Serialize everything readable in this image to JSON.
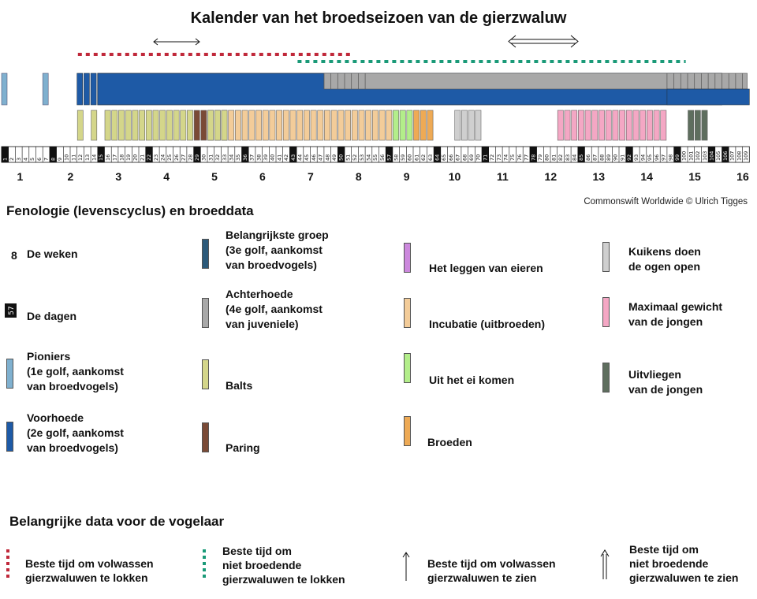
{
  "title": "Kalender van het broedseizoen van de gierzwaluw",
  "credit": "Commonswift Worldwide © Ulrich Tigges",
  "legend_heading": "Fenologie (levenscyclus) en broeddata",
  "birdwatcher_heading": "Belangrijke data voor de vogelaar",
  "colors": {
    "pioniers": "#7fb0cf",
    "voorhoede": "#1e5aa6",
    "belangrijkste": "#2c5a7a",
    "achterhoede": "#a8a8a8",
    "balts": "#d4d68a",
    "paring": "#7a4a36",
    "eieren": "#cc88dd",
    "incubatie": "#f3cc99",
    "uitkomen": "#b3ee8a",
    "broeden": "#eeaa55",
    "kuikens_ogen": "#cfcfcf",
    "maximaal_gewicht": "#f4a7c4",
    "uitvliegen": "#5e6e5e",
    "red_dots": "#c0283a",
    "green_dots": "#1a9a78"
  },
  "chart_data": {
    "type": "timeline",
    "x_unit": "dag",
    "weeks": [
      1,
      2,
      3,
      4,
      5,
      6,
      7,
      8,
      9,
      10,
      11,
      12,
      13,
      14,
      15,
      16
    ],
    "day_numbers_visible": "1–109",
    "bars": [
      {
        "category": "pioniers",
        "row": "upper",
        "days": [
          1,
          10
        ]
      },
      {
        "category": "voorhoede",
        "row": "upper",
        "days_from": 16,
        "days_to": 106
      },
      {
        "category": "achterhoede",
        "row": "upper",
        "days_from": 48,
        "days_to": 109
      },
      {
        "category": "balts",
        "row": "lower",
        "days_from": 16,
        "days_to": 47
      },
      {
        "category": "paring",
        "row": "lower",
        "days_from": 20,
        "days_to": 30
      },
      {
        "category": "incubatie",
        "row": "lower",
        "days_from": 30,
        "days_to": 63
      },
      {
        "category": "uitkomen",
        "row": "lower",
        "days_from": 58,
        "days_to": 61
      },
      {
        "category": "broeden",
        "row": "lower",
        "days_from": 60,
        "days_to": 66
      },
      {
        "category": "kuikens_ogen",
        "row": "lower",
        "days_from": 68,
        "days_to": 71
      },
      {
        "category": "maximaal_gewicht",
        "row": "lower",
        "days_from": 83,
        "days_to": 95
      },
      {
        "category": "uitvliegen",
        "row": "lower",
        "days_from": 101,
        "days_to": 103
      }
    ],
    "best_time_lure_adults": {
      "weeks_from": 3,
      "weeks_to": 8
    },
    "best_time_lure_nonbreeding": {
      "weeks_from": 7,
      "weeks_to": 15
    },
    "best_see_adults_arrow": {
      "week": 4
    },
    "best_see_nonbreeding_arrow": {
      "week": 12
    }
  },
  "legend": {
    "weken": {
      "label": "De weken",
      "icon": "8"
    },
    "dagen": {
      "label": "De dagen"
    },
    "pioniers": [
      "Pioniers",
      "(1e golf, aankomst",
      "van broedvogels)"
    ],
    "voorhoede": [
      "Voorhoede",
      "(2e golf, aankomst",
      "van broedvogels)"
    ],
    "belangrijkste": [
      "Belangrijkste groep",
      "(3e golf, aankomst",
      "van broedvogels)"
    ],
    "achterhoede": [
      "Achterhoede",
      "(4e golf, aankomst",
      "van juveniele)"
    ],
    "balts": "Balts",
    "paring": "Paring",
    "eieren": "Het leggen van eieren",
    "incubatie": "Incubatie (uitbroeden)",
    "uitkomen": "Uit het ei komen",
    "broeden": "Broeden",
    "kuikens_ogen": [
      "Kuikens doen",
      "de ogen open"
    ],
    "maximaal_gewicht": [
      "Maximaal gewicht",
      "van de jongen"
    ],
    "uitvliegen": [
      "Uitvliegen",
      "van de jongen"
    ]
  },
  "tips": {
    "lure_adults": [
      "Beste tijd om volwassen",
      "gierzwaluwen te lokken"
    ],
    "lure_nonbreeding": [
      "Beste tijd om",
      "niet broedende",
      "gierzwaluwen te lokken"
    ],
    "see_adults": [
      "Beste tijd om volwassen",
      "gierzwaluwen te zien"
    ],
    "see_nonbreeding": [
      "Beste tijd om",
      "niet broedende",
      "gierzwaluwen te zien"
    ]
  }
}
